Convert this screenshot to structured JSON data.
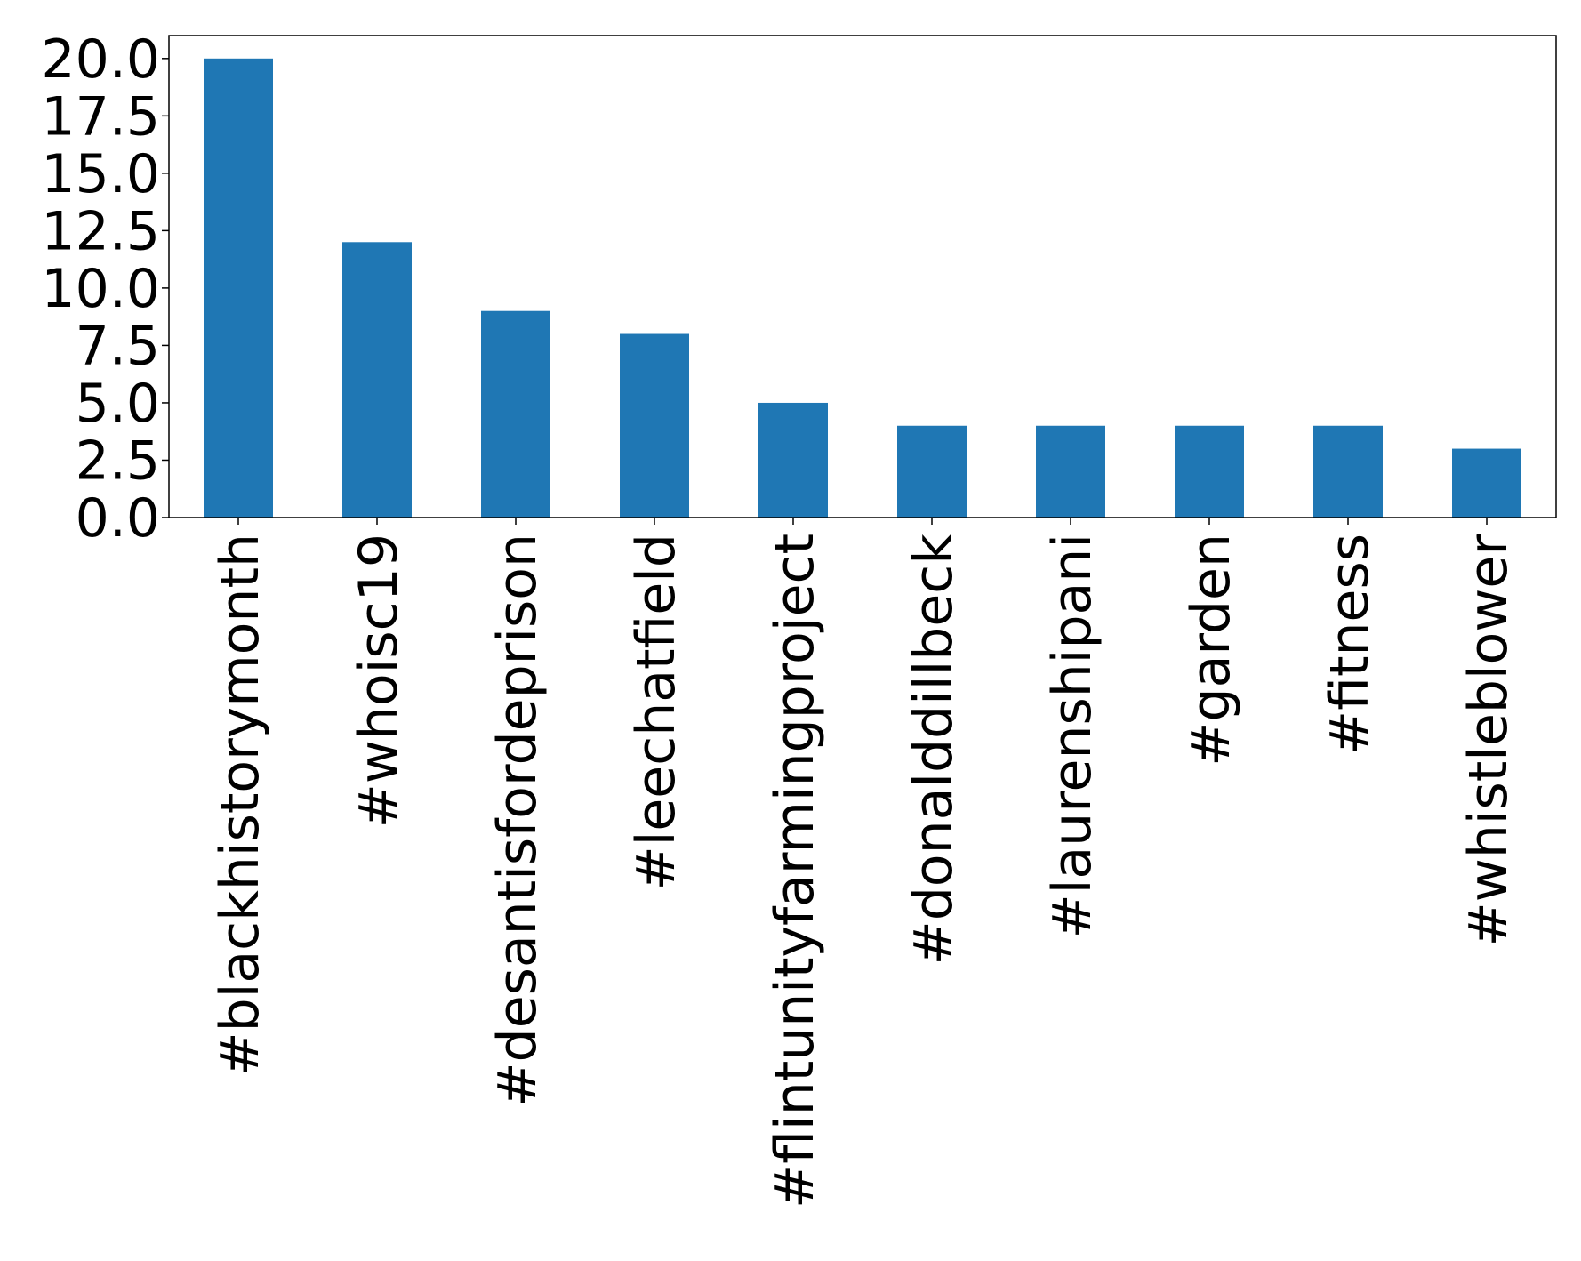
{
  "chart_data": {
    "type": "bar",
    "title": "",
    "xlabel": "",
    "ylabel": "",
    "categories": [
      "#blackhistorymonth",
      "#whoisc19",
      "#desantisfordeprison",
      "#leechatfield",
      "#flintunityfarmingproject",
      "#donalddillbeck",
      "#laurenshipani",
      "#garden",
      "#fitness",
      "#whistleblower"
    ],
    "values": [
      20,
      12,
      9,
      8,
      5,
      4,
      4,
      4,
      4,
      3
    ],
    "ylim": [
      0,
      21
    ],
    "yticks": [
      0.0,
      2.5,
      5.0,
      7.5,
      10.0,
      12.5,
      15.0,
      17.5,
      20.0
    ],
    "ytick_labels": [
      "0.0",
      "2.5",
      "5.0",
      "7.5",
      "10.0",
      "12.5",
      "15.0",
      "17.5",
      "20.0"
    ],
    "bar_color": "#1f77b4",
    "grid": false,
    "legend": "none",
    "xtick_rotation": "vertical"
  }
}
